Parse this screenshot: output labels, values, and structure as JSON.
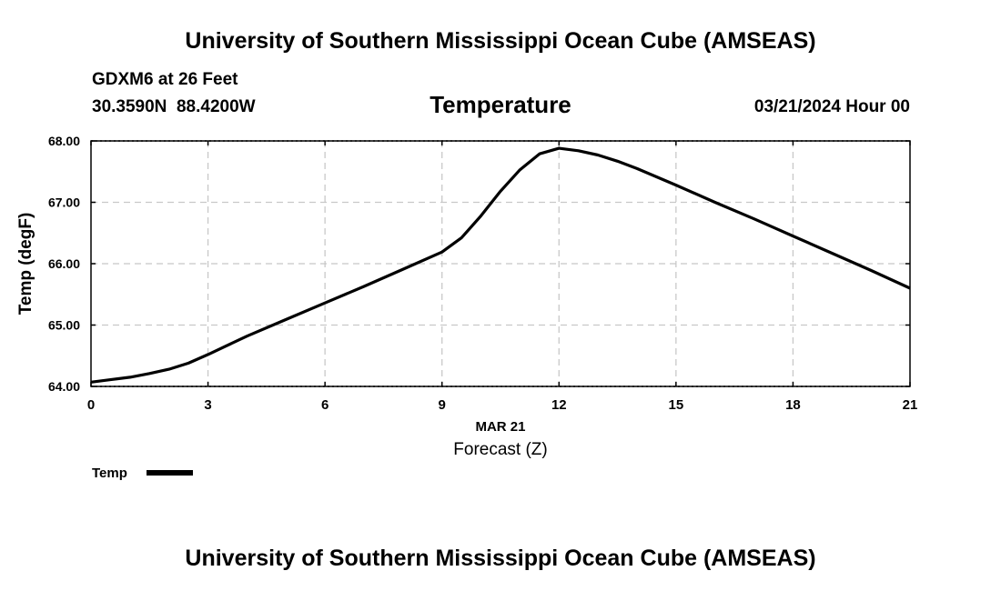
{
  "header": {
    "title_top": "University of Southern Mississippi Ocean Cube (AMSEAS)",
    "station": "GDXM6 at 26 Feet",
    "coords": "30.3590N  88.4200W",
    "chart_title": "Temperature",
    "datetime": "03/21/2024 Hour 00"
  },
  "footer": {
    "title_bottom": "University of Southern Mississippi Ocean Cube (AMSEAS)"
  },
  "chart_data": {
    "type": "line",
    "title": "Temperature",
    "xlabel": "Forecast (Z)",
    "xlabel_date": "MAR 21",
    "ylabel": "Temp (degF)",
    "xlim": [
      0,
      21
    ],
    "ylim": [
      64,
      68
    ],
    "xticks": [
      0,
      3,
      6,
      9,
      12,
      15,
      18,
      21
    ],
    "yticks": [
      64,
      65,
      66,
      67,
      68
    ],
    "ytick_labels": [
      "64.00",
      "65.00",
      "66.00",
      "67.00",
      "68.00"
    ],
    "grid": true,
    "legend_position": "bottom-left",
    "series": [
      {
        "name": "Temp",
        "color": "#000000",
        "x": [
          0,
          0.5,
          1,
          1.5,
          2,
          2.5,
          3,
          4,
          5,
          6,
          7,
          8,
          9,
          9.5,
          10,
          10.5,
          11,
          11.5,
          12,
          12.5,
          13,
          13.5,
          14,
          15,
          16,
          17,
          18,
          19,
          20,
          21
        ],
        "values": [
          64.07,
          64.11,
          64.15,
          64.21,
          64.28,
          64.38,
          64.52,
          64.82,
          65.09,
          65.36,
          65.63,
          65.91,
          66.19,
          66.42,
          66.78,
          67.18,
          67.53,
          67.79,
          67.88,
          67.84,
          67.77,
          67.67,
          67.55,
          67.28,
          67.0,
          66.73,
          66.45,
          66.17,
          65.89,
          65.6
        ]
      }
    ]
  }
}
